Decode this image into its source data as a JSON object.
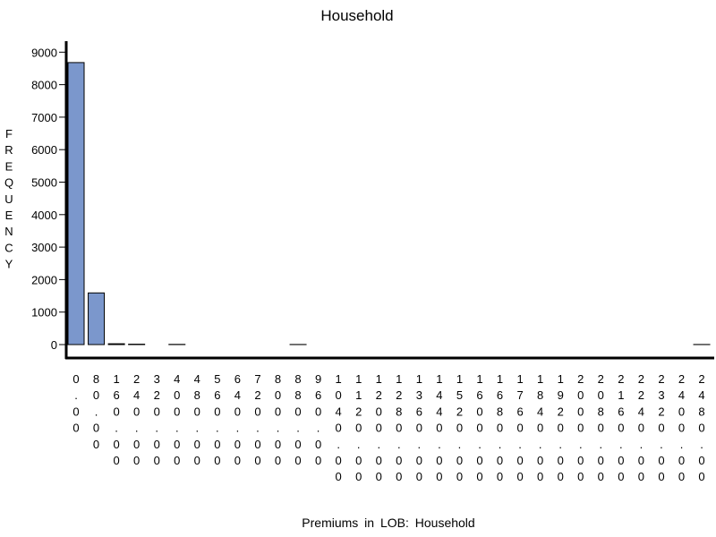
{
  "chart_data": {
    "type": "bar",
    "title": "Household",
    "xlabel": "Premiums in LOB: Household",
    "ylabel": "FREQUENCY",
    "ylim": [
      -400,
      9400
    ],
    "yticks": [
      0,
      1000,
      2000,
      3000,
      4000,
      5000,
      6000,
      7000,
      8000,
      9000
    ],
    "grid": false,
    "legend": "none",
    "bar_color": "#7b97cc",
    "categories": [
      "0.00",
      "80.00",
      "160.00",
      "240.00",
      "320.00",
      "400.00",
      "480.00",
      "560.00",
      "640.00",
      "720.00",
      "800.00",
      "880.00",
      "960.00",
      "1040.00",
      "1120.00",
      "1200.00",
      "1280.00",
      "1360.00",
      "1440.00",
      "1520.00",
      "1600.00",
      "1680.00",
      "1760.00",
      "1840.00",
      "1920.00",
      "2000.00",
      "2080.00",
      "2160.00",
      "2240.00",
      "2320.00",
      "2400.00",
      "2480.00"
    ],
    "values": [
      8680,
      1590,
      25,
      12,
      0,
      6,
      0,
      0,
      0,
      0,
      0,
      3,
      0,
      0,
      0,
      0,
      0,
      0,
      0,
      0,
      0,
      0,
      0,
      0,
      0,
      0,
      0,
      0,
      0,
      0,
      0,
      3
    ]
  }
}
